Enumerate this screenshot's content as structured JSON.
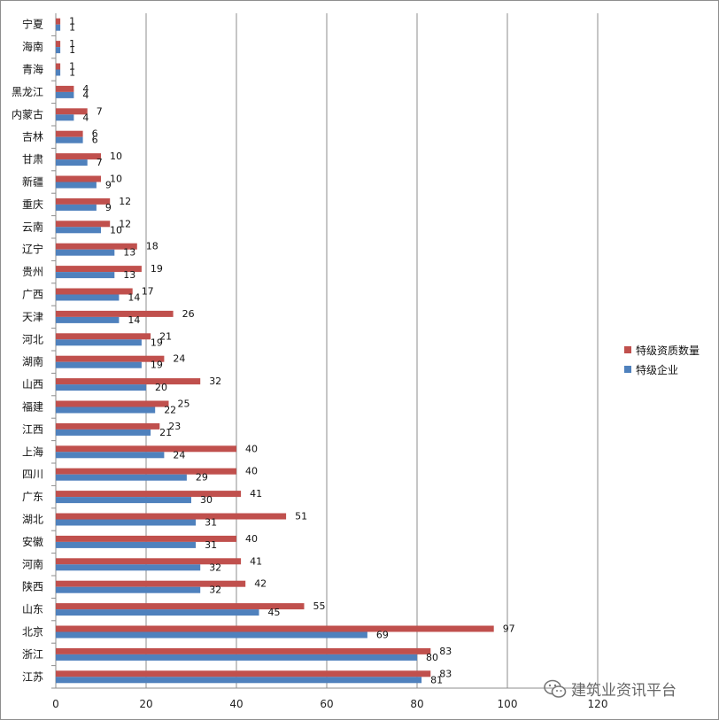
{
  "chart_data": {
    "type": "bar",
    "orientation": "horizontal",
    "categories": [
      "宁夏",
      "海南",
      "青海",
      "黑龙江",
      "内蒙古",
      "吉林",
      "甘肃",
      "新疆",
      "重庆",
      "云南",
      "辽宁",
      "贵州",
      "广西",
      "天津",
      "河北",
      "湖南",
      "山西",
      "福建",
      "江西",
      "上海",
      "四川",
      "广东",
      "湖北",
      "安徽",
      "河南",
      "陕西",
      "山东",
      "北京",
      "浙江",
      "江苏"
    ],
    "series": [
      {
        "name": "特级资质数量",
        "color": "#c0504d",
        "values": [
          1,
          1,
          1,
          4,
          7,
          6,
          10,
          10,
          12,
          12,
          18,
          19,
          17,
          26,
          21,
          24,
          32,
          25,
          23,
          40,
          40,
          41,
          51,
          40,
          41,
          42,
          55,
          97,
          83,
          83
        ]
      },
      {
        "name": "特级企业",
        "color": "#4f81bd",
        "values": [
          1,
          1,
          1,
          4,
          4,
          6,
          7,
          9,
          9,
          10,
          13,
          13,
          14,
          14,
          19,
          19,
          20,
          22,
          21,
          24,
          29,
          30,
          31,
          31,
          32,
          32,
          45,
          69,
          80,
          81
        ]
      }
    ],
    "xlim": [
      0,
      120
    ],
    "xticks": [
      0,
      20,
      40,
      60,
      80,
      100,
      120
    ],
    "grid": true,
    "legend_position": "right"
  },
  "watermark": {
    "text": "建筑业资讯平台",
    "icon": "wechat-icon"
  }
}
